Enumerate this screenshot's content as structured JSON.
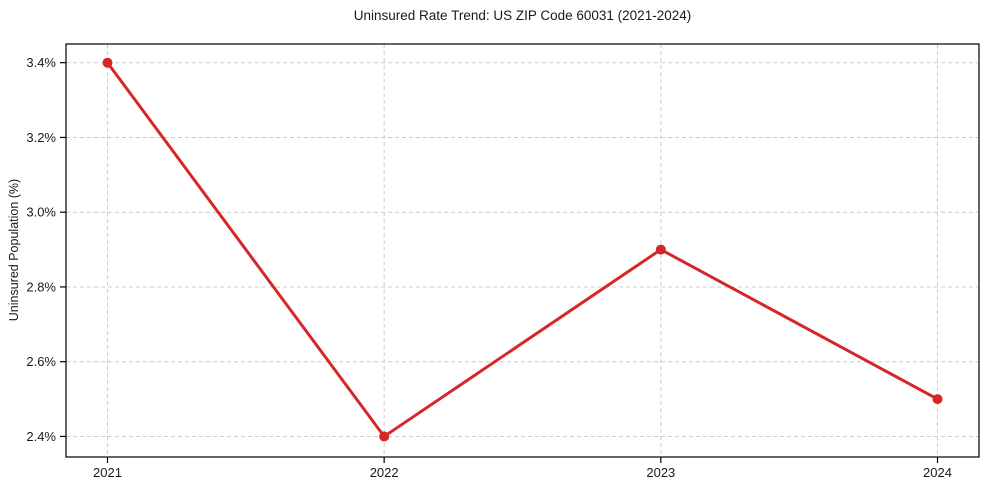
{
  "chart_data": {
    "type": "line",
    "title": "Uninsured Rate Trend: US ZIP Code 60031 (2021-2024)",
    "xlabel": "",
    "ylabel": "Uninsured Population (%)",
    "x": [
      2021,
      2022,
      2023,
      2024
    ],
    "series": [
      {
        "name": "uninsured-rate",
        "values": [
          3.4,
          2.4,
          2.9,
          2.5
        ]
      }
    ],
    "x_ticks": [
      2021,
      2022,
      2023,
      2024
    ],
    "x_tick_labels": [
      "2021",
      "2022",
      "2023",
      "2024"
    ],
    "y_ticks": [
      2.4,
      2.6,
      2.8,
      3.0,
      3.2,
      3.4
    ],
    "y_tick_labels": [
      "2.4%",
      "2.6%",
      "2.8%",
      "3.0%",
      "3.2%",
      "3.4%"
    ],
    "xlim": [
      2020.85,
      2024.15
    ],
    "ylim": [
      2.345,
      3.45
    ],
    "grid": true,
    "grid_style": "dashed",
    "legend_position": "none",
    "colors": {
      "line": "#d62728",
      "marker": "#d62728",
      "grid": "#cccccc",
      "spine": "#000000",
      "tick": "#000000",
      "text": "#1a1a1a",
      "background": "#ffffff"
    }
  }
}
